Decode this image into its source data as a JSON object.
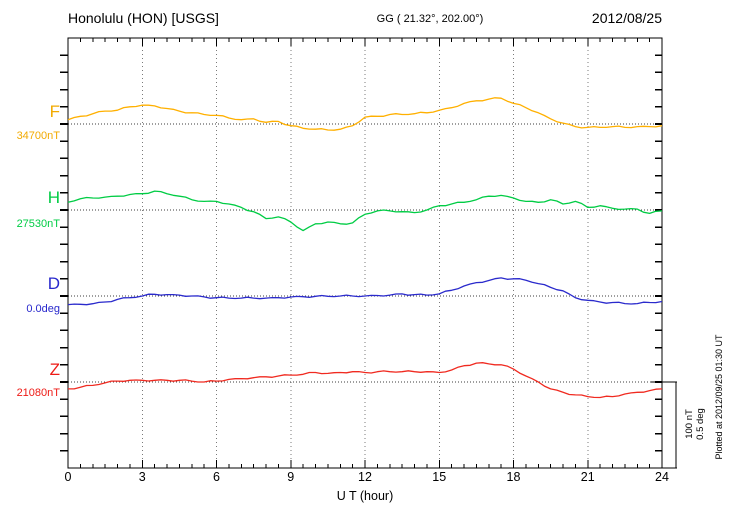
{
  "header": {
    "station": "Honolulu (HON)  [USGS]",
    "coords": "GG ( 21.32°, 202.00°)",
    "date": "2012/08/25"
  },
  "left_labels": [
    {
      "letter": "F",
      "value": "34700nT",
      "color": "#F2AA00"
    },
    {
      "letter": "H",
      "value": "27530nT",
      "color": "#00CC44"
    },
    {
      "letter": "D",
      "value": "0.0deg",
      "color": "#2828CC"
    },
    {
      "letter": "Z",
      "value": "21080nT",
      "color": "#EE1A15"
    }
  ],
  "xaxis": {
    "title": "U T (hour)",
    "tick_labels": [
      0,
      3,
      6,
      9,
      12,
      15,
      18,
      21,
      24
    ]
  },
  "scalebar": {
    "line1": "100 nT",
    "line2": "0.5 deg"
  },
  "plotted_note": "Plotted at 2012/09/25 01:30 UT",
  "chart_data": {
    "type": "line",
    "title": "USGS magnetogram, Honolulu (HON), 2012/08/25",
    "xlabel": "U T (hour)",
    "x_range_hours": [
      0,
      24
    ],
    "x_start_hour": 0,
    "x_step_hours": 0.5,
    "x_tick_labels": [
      0,
      3,
      6,
      9,
      12,
      15,
      18,
      21,
      24
    ],
    "grid": "dotted vertical lines every 3 h; dotted horizontal line at each trace baseline",
    "scale_per_division": {
      "nT": 100,
      "deg": 0.5
    },
    "series": [
      {
        "name": "F",
        "unit": "nT",
        "baseline": 34700,
        "color": "#FFB000",
        "offsets": [
          5,
          9,
          12,
          15,
          16,
          20,
          22,
          21,
          18,
          15,
          13,
          11,
          10,
          7,
          5,
          6,
          2,
          3,
          -2,
          -5,
          -6,
          -7,
          -6,
          -2,
          8,
          9,
          11,
          11,
          12,
          13,
          16,
          19,
          24,
          27,
          29,
          30,
          24,
          19,
          13,
          6,
          1,
          -3,
          -4,
          -4,
          -3,
          -4,
          -3,
          -3,
          -2
        ]
      },
      {
        "name": "H",
        "unit": "nT",
        "baseline": 27530,
        "color": "#00CC44",
        "offsets": [
          9,
          13,
          14,
          15,
          16,
          18,
          19,
          22,
          19,
          16,
          12,
          10,
          10,
          7,
          3,
          -2,
          -10,
          -8,
          -14,
          -24,
          -16,
          -14,
          -16,
          -15,
          -5,
          -1,
          -1,
          -2,
          -3,
          0,
          5,
          7,
          9,
          12,
          16,
          17,
          14,
          10,
          9,
          12,
          7,
          10,
          3,
          5,
          2,
          1,
          1,
          -4,
          -1
        ]
      },
      {
        "name": "D",
        "unit": "deg",
        "baseline": 0.0,
        "color": "#2A2ACC",
        "offsets": [
          -0.05,
          -0.048,
          -0.045,
          -0.035,
          -0.02,
          -0.01,
          0,
          0.01,
          0.008,
          0.005,
          0,
          -0.005,
          -0.01,
          -0.012,
          -0.012,
          -0.012,
          -0.012,
          -0.01,
          -0.006,
          -0.004,
          -0.002,
          -0.002,
          0,
          0,
          0,
          0.003,
          0.005,
          0.012,
          0.008,
          0.005,
          0.012,
          0.033,
          0.058,
          0.078,
          0.09,
          0.105,
          0.1,
          0.092,
          0.072,
          0.05,
          0.03,
          -0.01,
          -0.025,
          -0.035,
          -0.038,
          -0.044,
          -0.044,
          -0.038,
          -0.032
        ]
      },
      {
        "name": "Z",
        "unit": "nT",
        "baseline": 21080,
        "color": "#F02A20",
        "offsets": [
          -8,
          -6,
          -4,
          -1,
          1,
          2,
          2,
          2,
          2,
          2,
          1,
          0,
          1,
          3,
          4,
          5,
          6,
          7,
          8,
          9,
          11,
          10,
          11,
          12,
          11,
          12,
          12,
          12,
          12,
          12,
          11,
          14,
          19,
          22,
          21,
          20,
          15,
          7,
          0,
          -8,
          -12,
          -15,
          -17,
          -18,
          -17,
          -14,
          -12,
          -10,
          -8
        ]
      }
    ]
  }
}
